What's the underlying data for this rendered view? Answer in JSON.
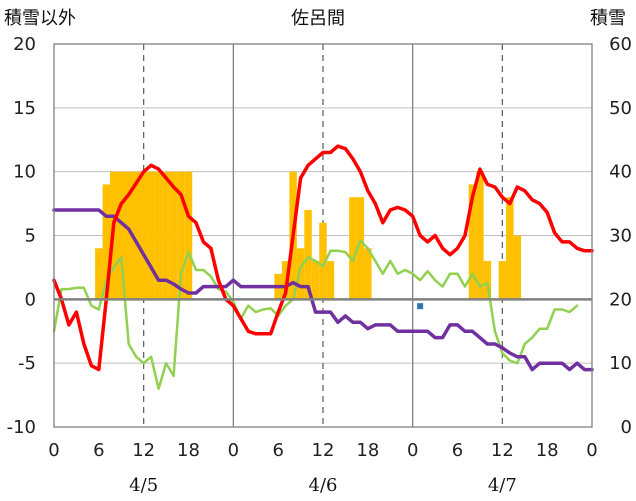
{
  "chart_data": {
    "type": "bar+line",
    "title": "佐呂間",
    "ylabel_left": "積雪以外",
    "ylabel_right": "積雪",
    "ylim_left": [
      -10,
      20
    ],
    "ylim_right": [
      0,
      60
    ],
    "yticks_left": [
      "20",
      "15",
      "10",
      "5",
      "0",
      "-5",
      "-10"
    ],
    "yticks_right": [
      "60",
      "50",
      "40",
      "30",
      "20",
      "10",
      "0"
    ],
    "xlim": [
      0,
      72
    ],
    "xticks": [
      "0",
      "6",
      "12",
      "18",
      "0",
      "6",
      "12",
      "18",
      "0",
      "6",
      "12",
      "18",
      "0"
    ],
    "date_labels": [
      "4/5",
      "4/6",
      "4/7"
    ],
    "grid": {
      "vertical_dashed_hours": [
        12,
        36,
        60
      ],
      "vertical_solid_hours": [
        24,
        48
      ]
    },
    "colors": {
      "bars": "#FFC000",
      "temperature": "#FF0000",
      "green_series": "#92D050",
      "snow_depth": "#7030A0",
      "marker": "#2E75B6"
    },
    "bars": {
      "axis": "left",
      "x": [
        6,
        7,
        8,
        9,
        10,
        11,
        12,
        13,
        14,
        15,
        16,
        17,
        18,
        30,
        31,
        32,
        33,
        34,
        35,
        36,
        37,
        40,
        41,
        42,
        56,
        57,
        58,
        60,
        61,
        62
      ],
      "values": [
        4,
        9,
        10,
        10,
        10,
        10,
        10,
        10,
        10,
        10,
        10,
        10,
        10,
        2,
        3,
        10,
        4,
        7,
        3,
        6,
        3,
        8,
        8,
        4,
        9,
        10,
        3,
        3,
        8,
        5
      ]
    },
    "series": [
      {
        "axis": "left",
        "type": "line",
        "x": [
          0,
          1,
          2,
          3,
          4,
          5,
          6,
          7,
          8,
          9,
          10,
          11,
          12,
          13,
          14,
          15,
          16,
          17,
          18,
          19,
          20,
          21,
          22,
          23,
          24,
          25,
          26,
          27,
          28,
          29,
          30,
          31,
          32,
          33,
          34,
          35,
          36,
          37,
          38,
          39,
          40,
          41,
          42,
          43,
          44,
          45,
          46,
          47,
          48,
          49,
          50,
          51,
          52,
          53,
          54,
          55,
          56,
          57,
          58,
          59,
          60,
          61,
          62,
          63,
          64,
          65,
          66,
          67,
          68,
          69,
          70,
          71,
          72
        ],
        "values": [
          1.5,
          0,
          -2,
          -1,
          -3.5,
          -5.2,
          -5.5,
          0,
          6,
          7.5,
          8.2,
          9.1,
          10,
          10.5,
          10.2,
          9.5,
          8.8,
          8.2,
          6.5,
          6,
          4.5,
          4,
          1.5,
          0,
          -0.5,
          -1.5,
          -2.5,
          -2.7,
          -2.7,
          -2.7,
          -1,
          0.5,
          5,
          9.5,
          10.5,
          11,
          11.5,
          11.5,
          12,
          11.8,
          11,
          10,
          8.5,
          7.5,
          6,
          7,
          7.2,
          7,
          6.5,
          5,
          4.5,
          5,
          4,
          3.5,
          4,
          5,
          8,
          10.2,
          9,
          8.8,
          8,
          7.5,
          8.8,
          8.5,
          7.8,
          7.5,
          6.8,
          5.2,
          4.5,
          4.5,
          4,
          3.8,
          3.8
        ]
      },
      {
        "axis": "left",
        "type": "line",
        "x": [
          0,
          1,
          2,
          3,
          4,
          5,
          6,
          7,
          8,
          9,
          10,
          11,
          12,
          13,
          14,
          15,
          16,
          17,
          18,
          19,
          20,
          21,
          22,
          23,
          24,
          25,
          26,
          27,
          28,
          29,
          30,
          31,
          32,
          33,
          34,
          35,
          36,
          37,
          38,
          39,
          40,
          41,
          42,
          43,
          44,
          45,
          46,
          47,
          48,
          49,
          50,
          51,
          52,
          53,
          54,
          55,
          56,
          57,
          58,
          59,
          60,
          61,
          62,
          63,
          64,
          65,
          66,
          67,
          68,
          69,
          70
        ],
        "values": [
          -2.5,
          0.8,
          0.8,
          0.9,
          0.9,
          -0.5,
          -0.8,
          1.5,
          2.5,
          3.3,
          -3.5,
          -4.5,
          -5,
          -4.5,
          -7,
          -5,
          -6,
          2,
          3.7,
          2.3,
          2.3,
          1.8,
          0.8,
          0.6,
          -0.2,
          -1.5,
          -0.5,
          -1,
          -0.8,
          -0.7,
          -1.3,
          -0.5,
          0,
          2.5,
          3.3,
          3,
          2.6,
          3.8,
          3.8,
          3.7,
          3,
          4.6,
          4,
          3,
          2,
          3,
          2,
          2.3,
          2,
          1.5,
          2.2,
          1.5,
          1,
          2,
          2,
          1,
          2,
          1,
          1.3,
          -2.5,
          -4.2,
          -4.8,
          -5,
          -3.5,
          -3,
          -2.3,
          -2.3,
          -0.8,
          -0.8,
          -1,
          -0.5
        ]
      },
      {
        "axis": "left",
        "type": "line",
        "x": [
          0,
          1,
          2,
          3,
          4,
          5,
          6,
          7,
          8,
          9,
          10,
          11,
          12,
          13,
          14,
          15,
          16,
          17,
          18,
          19,
          20,
          21,
          22,
          23,
          24,
          25,
          26,
          27,
          28,
          29,
          30,
          31,
          32,
          33,
          34,
          35,
          36,
          37,
          38,
          39,
          40,
          41,
          42,
          43,
          44,
          45,
          46,
          47,
          48,
          49,
          50,
          51,
          52,
          53,
          54,
          55,
          56,
          57,
          58,
          59,
          60,
          61,
          62,
          63,
          64,
          65,
          66,
          67,
          68,
          69,
          70,
          71,
          72
        ],
        "values": [
          7,
          7,
          7,
          7,
          7,
          7,
          7,
          6.5,
          6.5,
          6,
          5.5,
          4.5,
          3.5,
          2.5,
          1.5,
          1.5,
          1.2,
          0.8,
          0.5,
          0.5,
          1,
          1,
          1,
          1,
          1.5,
          1,
          1,
          1,
          1,
          1,
          1,
          1,
          1.3,
          1,
          1,
          -1,
          -1,
          -1,
          -1.8,
          -1.3,
          -1.8,
          -1.8,
          -2.3,
          -2,
          -2,
          -2,
          -2.5,
          -2.5,
          -2.5,
          -2.5,
          -2.5,
          -3,
          -3,
          -2,
          -2,
          -2.5,
          -2.5,
          -3,
          -3.5,
          -3.5,
          -3.8,
          -4.2,
          -4.5,
          -4.5,
          -5.5,
          -5,
          -5,
          -5,
          -5,
          -5.5,
          -5,
          -5.5,
          -5.5
        ]
      }
    ],
    "marker_points": {
      "axis": "left",
      "x": [
        49
      ],
      "values": [
        -0.3
      ]
    }
  }
}
